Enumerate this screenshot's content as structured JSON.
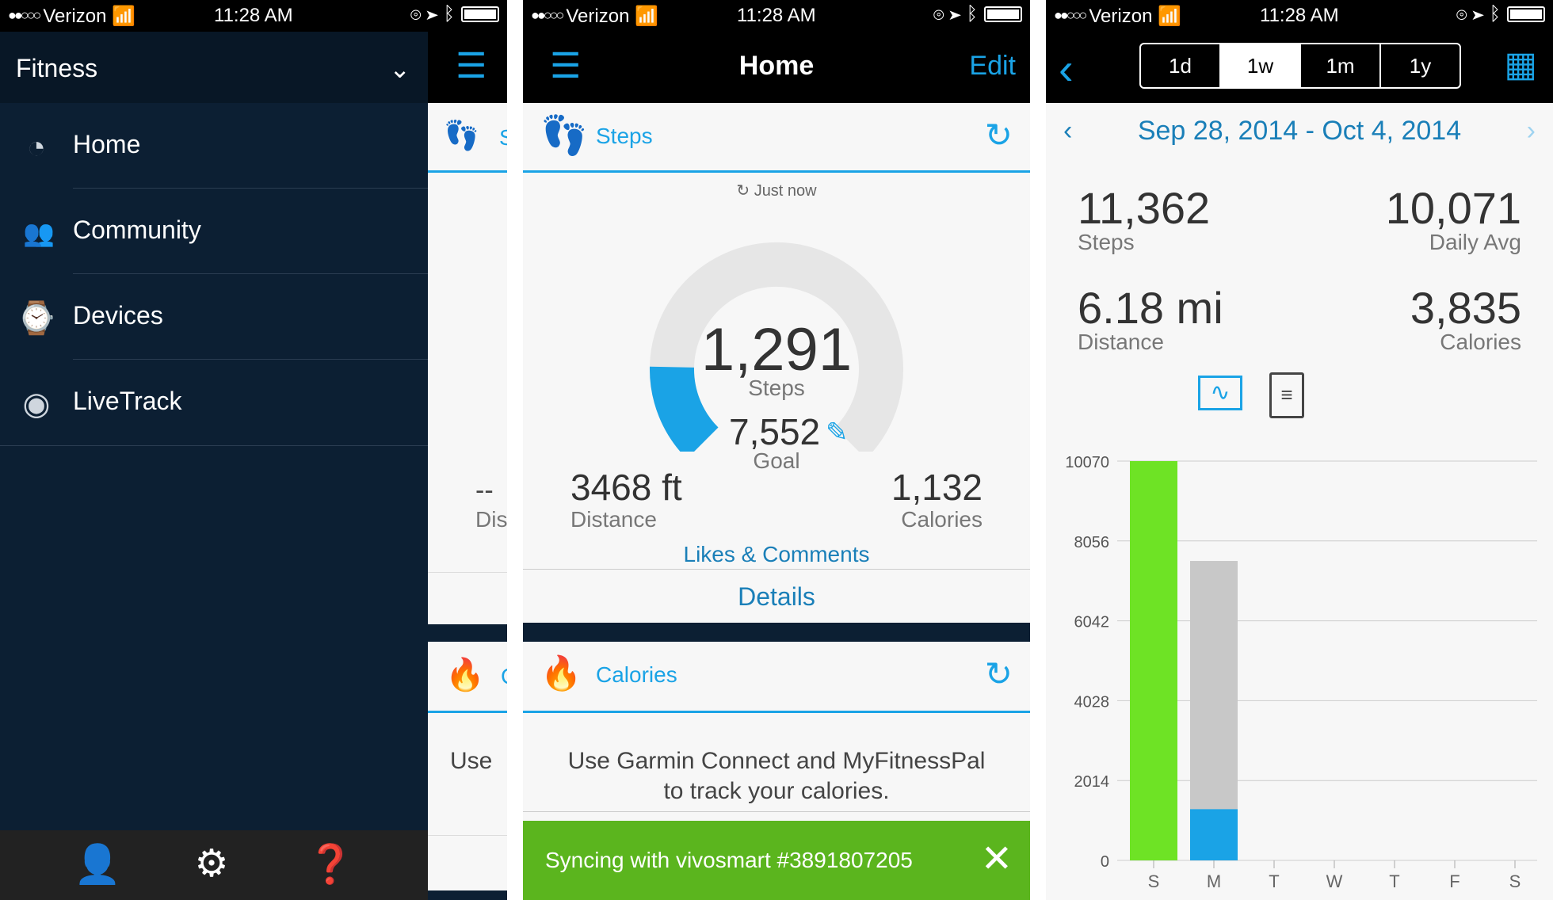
{
  "status_bar": {
    "carrier": "Verizon",
    "signal_dots": "●●○○○",
    "time": "11:28 AM"
  },
  "phone1": {
    "drawer_title": "Fitness",
    "menu": [
      {
        "label": "Home",
        "icon": "dashboard-icon"
      },
      {
        "label": "Community",
        "icon": "community-icon"
      },
      {
        "label": "Devices",
        "icon": "watch-icon"
      },
      {
        "label": "LiveTrack",
        "icon": "eye-icon"
      }
    ],
    "bottom_icons": [
      "profile-icon",
      "settings-icon",
      "help-icon"
    ],
    "peek": {
      "steps_title_fragment": "S",
      "distance_value": "--",
      "distance_label_fragment": "Dis",
      "calories_title_fragment": "C",
      "calories_text_fragment": "Use"
    }
  },
  "phone2": {
    "nav_title": "Home",
    "edit_label": "Edit",
    "steps_card": {
      "title": "Steps",
      "sync_status": "Just now",
      "steps_value": "1,291",
      "steps_label": "Steps",
      "goal_value": "7,552",
      "goal_label": "Goal",
      "progress_fraction": 0.171,
      "distance_value": "3468 ft",
      "distance_label": "Distance",
      "calories_value": "1,132",
      "calories_label": "Calories",
      "likes_label": "Likes & Comments",
      "details_label": "Details"
    },
    "calories_card": {
      "title": "Calories",
      "message_line1": "Use Garmin Connect and MyFitnessPal",
      "message_line2": "to track your calories."
    },
    "sync_banner": "Syncing with vivosmart #3891807205"
  },
  "phone3": {
    "segments": [
      "1d",
      "1w",
      "1m",
      "1y"
    ],
    "active_segment": "1w",
    "date_range": "Sep 28, 2014 - Oct 4, 2014",
    "stats": {
      "steps_value": "11,362",
      "steps_label": "Steps",
      "avg_value": "10,071",
      "avg_label": "Daily Avg",
      "distance_value": "6.18 mi",
      "distance_label": "Distance",
      "calories_value": "3,835",
      "calories_label": "Calories"
    }
  },
  "chart_data": {
    "type": "bar",
    "categories": [
      "S",
      "M",
      "T",
      "W",
      "T",
      "F",
      "S"
    ],
    "y_ticks": [
      0,
      2014,
      4028,
      6042,
      8056,
      10070
    ],
    "ylim": [
      0,
      10070
    ],
    "steps": [
      10070,
      1291,
      0,
      0,
      0,
      0,
      0
    ],
    "goals": [
      10070,
      7552,
      0,
      0,
      0,
      0,
      0
    ],
    "colors": {
      "goal_met": "#6ee325",
      "steps": "#1aa3e6",
      "goal": "#c8c8c8"
    },
    "grid": true
  },
  "colors": {
    "accent": "#1aa3e6",
    "nav_dark": "#0c1f33",
    "sync_green": "#5bb51e"
  }
}
